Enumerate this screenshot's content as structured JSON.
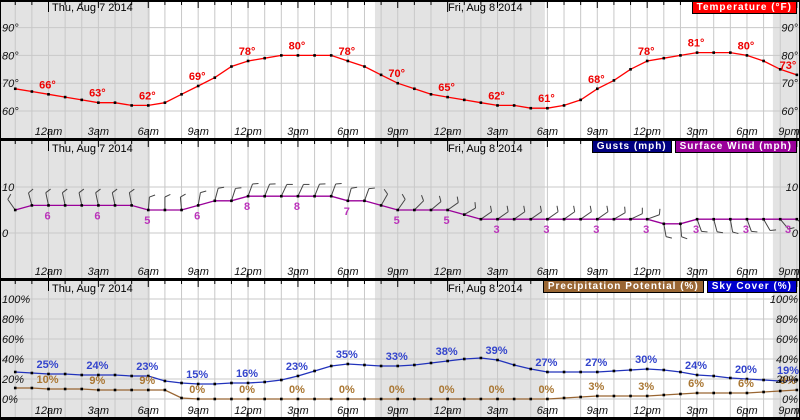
{
  "dates": {
    "thu": "Thu, Aug 7 2014",
    "fri": "Fri, Aug 8 2014"
  },
  "panels": {
    "temperature": {
      "legend": [
        {
          "label": "Temperature (°F)",
          "bg": "#ff0000"
        }
      ]
    },
    "wind": {
      "legend": [
        {
          "label": "Gusts (mph)",
          "bg": "#000080"
        },
        {
          "label": "Surface Wind (mph)",
          "bg": "#990099"
        }
      ]
    },
    "precip_sky": {
      "legend": [
        {
          "label": "Precipitation Potential (%)",
          "bg": "#996633"
        },
        {
          "label": "Sky Cover (%)",
          "bg": "#0000cc"
        }
      ]
    }
  },
  "time_axis": {
    "labels": [
      "12am",
      "3am",
      "6am",
      "9am",
      "12pm",
      "3pm",
      "6pm",
      "9pm",
      "12am",
      "3am",
      "6am",
      "9am",
      "12pm",
      "3pm",
      "6pm",
      "9pm"
    ],
    "tick_hours": [
      0,
      3,
      6,
      9,
      12,
      15,
      18,
      21,
      24,
      27,
      30,
      33,
      36,
      39,
      42,
      45
    ]
  },
  "night_shading_hours": [
    [
      -2.92,
      6.1
    ],
    [
      19.63,
      29.85
    ],
    [
      43.56,
      45.2
    ]
  ],
  "chart_data": [
    {
      "type": "line",
      "title": "Temperature (°F)",
      "x_start_hour": -2,
      "x_step_hours": 1,
      "ylim": [
        55,
        95
      ],
      "y_ticks": {
        "values": [
          90,
          80,
          70,
          60
        ],
        "labels": [
          "90°",
          "80°",
          "70°",
          "60°"
        ]
      },
      "grid": true,
      "legend_position": "top-right",
      "series": [
        {
          "name": "Temperature",
          "color": "#ff0000",
          "label_color": "#ee0000",
          "values": [
            68,
            67,
            66,
            65,
            64,
            63,
            63,
            62,
            62,
            63,
            66,
            69,
            72,
            76,
            78,
            79,
            80,
            80,
            80,
            80,
            78,
            76,
            73,
            70,
            68,
            66,
            65,
            64,
            63,
            62,
            62,
            61,
            61,
            62,
            64,
            68,
            71,
            75,
            78,
            79,
            80,
            81,
            81,
            81,
            80,
            78,
            75,
            73
          ],
          "point_label_hours": [
            0,
            3,
            6,
            9,
            12,
            15,
            18,
            21,
            24,
            27,
            30,
            33,
            36,
            39,
            42,
            45
          ],
          "point_labels": [
            "66°",
            "63°",
            "62°",
            "69°",
            "78°",
            "80°",
            "78°",
            "70°",
            "65°",
            "62°",
            "61°",
            "68°",
            "78°",
            "81°",
            "80°",
            "73°"
          ]
        }
      ]
    },
    {
      "type": "line",
      "title": "Surface Wind / Gusts (mph)",
      "x_start_hour": -2,
      "x_step_hours": 1,
      "ylim": [
        -10,
        20
      ],
      "y_ticks": {
        "values": [
          10,
          0
        ],
        "labels": [
          "10",
          "0"
        ]
      },
      "grid": true,
      "legend_position": "top-right",
      "series": [
        {
          "name": "Surface Wind",
          "color": "#990099",
          "label_color": "#bb33bb",
          "values": [
            5,
            6,
            6,
            6,
            6,
            6,
            6,
            6,
            5,
            5,
            5,
            6,
            7,
            7,
            8,
            8,
            8,
            8,
            8,
            8,
            7,
            7,
            6,
            5,
            5,
            5,
            5,
            4,
            3,
            3,
            3,
            3,
            3,
            3,
            3,
            3,
            3,
            3,
            3,
            2,
            2,
            3,
            3,
            3,
            3,
            3,
            3,
            3
          ],
          "barb_angles_deg": [
            -35,
            -15,
            -12,
            -12,
            -12,
            -12,
            -12,
            -10,
            5,
            0,
            -5,
            10,
            15,
            18,
            20,
            22,
            25,
            25,
            22,
            20,
            15,
            20,
            30,
            35,
            45,
            50,
            55,
            60,
            55,
            55,
            55,
            55,
            55,
            55,
            55,
            55,
            60,
            65,
            70,
            170,
            175,
            160,
            165,
            170,
            160,
            150,
            140,
            130
          ],
          "point_label_hours": [
            0,
            3,
            6,
            9,
            12,
            15,
            18,
            21,
            24,
            27,
            30,
            33,
            36,
            39,
            42,
            45
          ],
          "point_labels": [
            "6",
            "6",
            "5",
            "6",
            "8",
            "8",
            "7",
            "5",
            "5",
            "3",
            "3",
            "3",
            "3",
            "3",
            "3",
            "3"
          ]
        }
      ]
    },
    {
      "type": "line",
      "title": "Precipitation Potential / Sky Cover (%)",
      "x_start_hour": -2,
      "x_step_hours": 1,
      "ylim": [
        -18,
        118
      ],
      "y_ticks": {
        "values": [
          100,
          80,
          60,
          40,
          20,
          0
        ],
        "labels": [
          "100%",
          "80%",
          "60%",
          "40%",
          "20%",
          "0%"
        ]
      },
      "grid": true,
      "legend_position": "top-right",
      "series": [
        {
          "name": "Sky Cover",
          "color": "#2233bb",
          "label_color": "#3344cc",
          "values": [
            27,
            26,
            25,
            25,
            24,
            24,
            24,
            23,
            23,
            18,
            16,
            15,
            15,
            16,
            16,
            17,
            19,
            23,
            28,
            33,
            35,
            34,
            33,
            33,
            34,
            36,
            38,
            40,
            41,
            39,
            34,
            30,
            27,
            27,
            27,
            27,
            28,
            29,
            30,
            29,
            27,
            24,
            23,
            21,
            20,
            19,
            18,
            19
          ],
          "point_label_hours": [
            0,
            3,
            6,
            9,
            12,
            15,
            18,
            21,
            24,
            27,
            30,
            33,
            36,
            39,
            42,
            45
          ],
          "point_labels": [
            "25%",
            "24%",
            "23%",
            "15%",
            "16%",
            "23%",
            "35%",
            "33%",
            "38%",
            "39%",
            "27%",
            "27%",
            "30%",
            "24%",
            "20%",
            "19%"
          ]
        },
        {
          "name": "Precipitation Potential",
          "color": "#996633",
          "label_color": "#aa7733",
          "values": [
            11,
            11,
            10,
            10,
            10,
            9,
            9,
            9,
            9,
            9,
            1,
            0,
            0,
            0,
            0,
            0,
            0,
            0,
            0,
            0,
            0,
            0,
            0,
            0,
            0,
            0,
            0,
            0,
            0,
            0,
            0,
            0,
            0,
            1,
            2,
            3,
            3,
            3,
            3,
            4,
            5,
            6,
            6,
            6,
            6,
            7,
            8,
            9
          ],
          "point_label_hours": [
            0,
            3,
            6,
            9,
            12,
            15,
            18,
            21,
            24,
            27,
            30,
            33,
            36,
            39,
            42,
            45
          ],
          "point_labels": [
            "10%",
            "9%",
            "9%",
            "0%",
            "0%",
            "0%",
            "0%",
            "0%",
            "0%",
            "0%",
            "0%",
            "3%",
            "3%",
            "6%",
            "6%",
            "9%"
          ]
        }
      ]
    }
  ]
}
